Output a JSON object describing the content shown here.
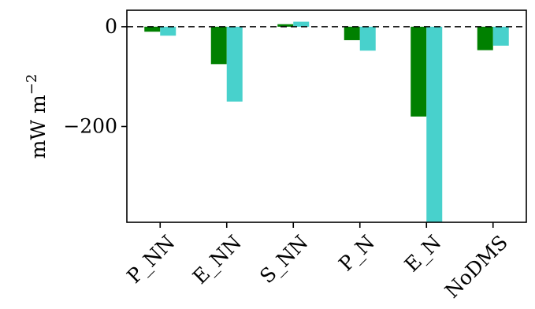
{
  "chart_data": {
    "type": "bar",
    "categories": [
      "P_NN",
      "E_NN",
      "S_NN",
      "P_N",
      "E_N",
      "NoDMS"
    ],
    "series": [
      {
        "color": "#008000",
        "values": [
          -10,
          -75,
          5,
          -27,
          -180,
          -47
        ]
      },
      {
        "color": "#48D1CC",
        "values": [
          -18,
          -150,
          10,
          -48,
          -395,
          -38
        ]
      }
    ],
    "ylabel_main": "mW m",
    "ylabel_exponent": "−2",
    "y_ticks": [
      {
        "value": 0,
        "label": "0"
      },
      {
        "value": -200,
        "label": "−200"
      }
    ],
    "ylim": [
      -392,
      33
    ],
    "reference_line": {
      "y": 0,
      "style": "dashed",
      "color": "#000000"
    },
    "grid": false,
    "legend": "none"
  }
}
